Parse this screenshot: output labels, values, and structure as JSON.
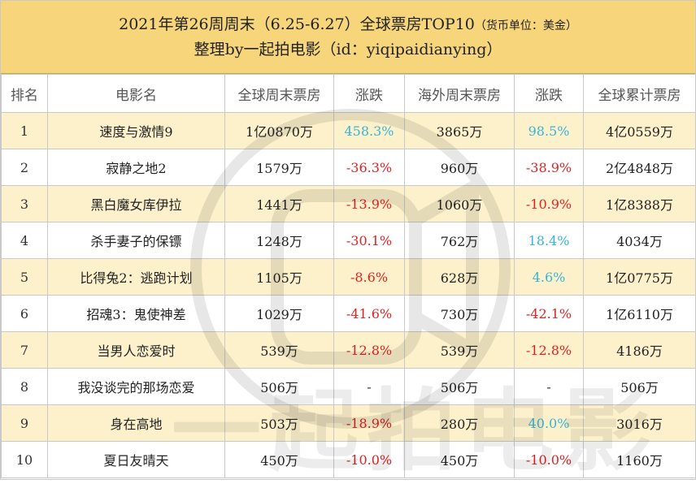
{
  "header": {
    "title_main": "2021年第26周周末（6.25-6.27）全球票房TOP10",
    "title_unit": "（货币单位：美金）",
    "subtitle": "整理by一起拍电影（id：yiqipaidianying）"
  },
  "table": {
    "columns": [
      "排名",
      "电影名",
      "全球周末票房",
      "涨跌",
      "海外周末票房",
      "涨跌",
      "全球累计票房"
    ],
    "rows": [
      {
        "rank": "1",
        "title": "速度与激情9",
        "global_weekend": "1亿0870万",
        "global_change": "458.3%",
        "global_dir": "up",
        "intl_weekend": "3865万",
        "intl_change": "98.5%",
        "intl_dir": "up",
        "total": "4亿0559万"
      },
      {
        "rank": "2",
        "title": "寂静之地2",
        "global_weekend": "1579万",
        "global_change": "-36.3%",
        "global_dir": "down",
        "intl_weekend": "960万",
        "intl_change": "-38.9%",
        "intl_dir": "down",
        "total": "2亿4848万"
      },
      {
        "rank": "3",
        "title": "黑白魔女库伊拉",
        "global_weekend": "1441万",
        "global_change": "-13.9%",
        "global_dir": "down",
        "intl_weekend": "1060万",
        "intl_change": "-10.9%",
        "intl_dir": "down",
        "total": "1亿8388万"
      },
      {
        "rank": "4",
        "title": "杀手妻子的保镖",
        "global_weekend": "1248万",
        "global_change": "-30.1%",
        "global_dir": "down",
        "intl_weekend": "762万",
        "intl_change": "18.4%",
        "intl_dir": "up",
        "total": "4034万"
      },
      {
        "rank": "5",
        "title": "比得兔2：逃跑计划",
        "global_weekend": "1105万",
        "global_change": "-8.6%",
        "global_dir": "down",
        "intl_weekend": "628万",
        "intl_change": "4.6%",
        "intl_dir": "up",
        "total": "1亿0775万"
      },
      {
        "rank": "6",
        "title": "招魂3：鬼使神差",
        "global_weekend": "1029万",
        "global_change": "-41.6%",
        "global_dir": "down",
        "intl_weekend": "730万",
        "intl_change": "-42.1%",
        "intl_dir": "down",
        "total": "1亿6110万"
      },
      {
        "rank": "7",
        "title": "当男人恋爱时",
        "global_weekend": "539万",
        "global_change": "-12.8%",
        "global_dir": "down",
        "intl_weekend": "539万",
        "intl_change": "-12.8%",
        "intl_dir": "down",
        "total": "4186万"
      },
      {
        "rank": "8",
        "title": "我没谈完的那场恋爱",
        "global_weekend": "506万",
        "global_change": "-",
        "global_dir": "none",
        "intl_weekend": "506万",
        "intl_change": "-",
        "intl_dir": "none",
        "total": "506万"
      },
      {
        "rank": "9",
        "title": "身在高地",
        "global_weekend": "503万",
        "global_change": "-18.9%",
        "global_dir": "down",
        "intl_weekend": "280万",
        "intl_change": "40.0%",
        "intl_dir": "up",
        "total": "3016万"
      },
      {
        "rank": "10",
        "title": "夏日友晴天",
        "global_weekend": "450万",
        "global_change": "-10.0%",
        "global_dir": "down",
        "intl_weekend": "450万",
        "intl_change": "-10.0%",
        "intl_dir": "down",
        "total": "1160万"
      }
    ]
  },
  "watermark": {
    "text": "一起拍电影",
    "icon": "camera-logo-icon"
  },
  "colors": {
    "header_bg": "#f7d57a",
    "odd_row_bg": "#fdf1cc",
    "up": "#35b6d6",
    "down": "#e02222"
  }
}
